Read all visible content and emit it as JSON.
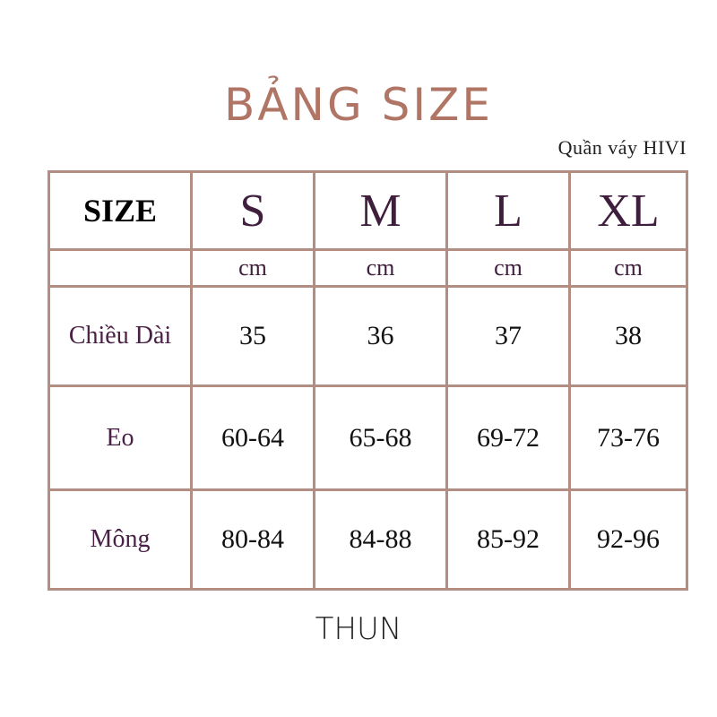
{
  "header": {
    "title": "BẢNG SIZE",
    "subtitle": "Quần váy HIVI"
  },
  "table": {
    "columns": [
      "SIZE",
      "S",
      "M",
      "L",
      "XL"
    ],
    "units": [
      "cm",
      "cm",
      "cm",
      "cm"
    ],
    "rows": [
      [
        "Chiều Dài",
        "35",
        "36",
        "37",
        "38"
      ],
      [
        "Eo",
        "60-64",
        "65-68",
        "69-72",
        "73-76"
      ],
      [
        "Mông",
        "80-84",
        "84-88",
        "85-92",
        "92-96"
      ]
    ]
  },
  "footer": {
    "text": "THUN"
  }
}
